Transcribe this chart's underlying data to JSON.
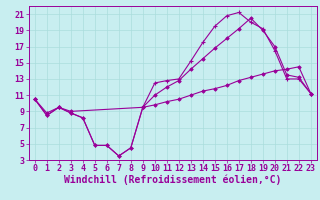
{
  "xlabel": "Windchill (Refroidissement éolien,°C)",
  "bg_color": "#c8eef0",
  "line_color": "#990099",
  "grid_color": "#aadddd",
  "xlim": [
    -0.5,
    23.5
  ],
  "ylim": [
    3,
    22
  ],
  "xticks": [
    0,
    1,
    2,
    3,
    4,
    5,
    6,
    7,
    8,
    9,
    10,
    11,
    12,
    13,
    14,
    15,
    16,
    17,
    18,
    19,
    20,
    21,
    22,
    23
  ],
  "yticks": [
    3,
    5,
    7,
    9,
    11,
    13,
    15,
    17,
    19,
    21
  ],
  "line1_x": [
    0,
    1,
    2,
    3,
    4,
    5,
    6,
    7,
    8,
    9,
    10,
    11,
    12,
    13,
    14,
    15,
    16,
    17,
    18,
    19,
    20,
    21,
    22,
    23
  ],
  "line1_y": [
    10.5,
    8.5,
    9.5,
    8.8,
    8.2,
    4.8,
    4.8,
    3.5,
    4.5,
    9.5,
    12.5,
    12.8,
    13.0,
    15.2,
    17.5,
    19.5,
    20.8,
    21.2,
    20.0,
    19.2,
    16.5,
    13.0,
    13.0,
    11.2
  ],
  "line2_x": [
    0,
    1,
    2,
    3,
    4,
    5,
    6,
    7,
    8,
    9,
    10,
    11,
    12,
    13,
    14,
    15,
    16,
    17,
    18,
    19,
    20,
    21,
    22,
    23
  ],
  "line2_y": [
    10.5,
    8.5,
    9.5,
    8.8,
    8.2,
    4.8,
    4.8,
    3.5,
    4.5,
    9.5,
    11.0,
    12.0,
    12.8,
    14.2,
    15.5,
    16.8,
    18.0,
    19.2,
    20.5,
    19.0,
    17.0,
    13.5,
    13.2,
    11.2
  ],
  "line3_x": [
    0,
    1,
    2,
    3,
    9,
    10,
    11,
    12,
    13,
    14,
    15,
    16,
    17,
    18,
    19,
    20,
    21,
    22,
    23
  ],
  "line3_y": [
    10.5,
    8.8,
    9.5,
    9.0,
    9.5,
    9.8,
    10.2,
    10.5,
    11.0,
    11.5,
    11.8,
    12.2,
    12.8,
    13.2,
    13.6,
    14.0,
    14.2,
    14.5,
    11.2
  ],
  "tick_fontsize": 6,
  "xlabel_fontsize": 7
}
